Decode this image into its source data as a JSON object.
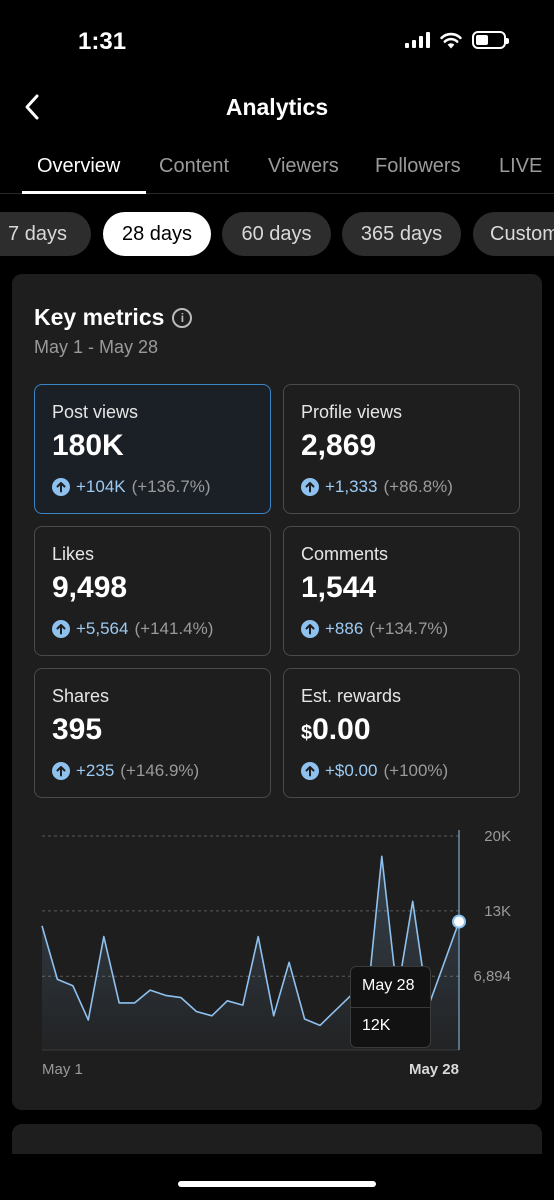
{
  "status": {
    "time": "1:31",
    "battery_level": 0.35
  },
  "header": {
    "title": "Analytics",
    "back_icon": "chevron-left-icon"
  },
  "tabs": [
    {
      "label": "Overview",
      "active": true
    },
    {
      "label": "Content"
    },
    {
      "label": "Viewers"
    },
    {
      "label": "Followers"
    },
    {
      "label": "LIVE"
    }
  ],
  "ranges": [
    {
      "label": "7 days"
    },
    {
      "label": "28 days",
      "active": true
    },
    {
      "label": "60 days"
    },
    {
      "label": "365 days"
    },
    {
      "label": "Custom"
    }
  ],
  "key_metrics": {
    "title": "Key metrics",
    "date_range": "May 1 - May 28",
    "metrics": [
      {
        "label": "Post views",
        "value": "180K",
        "change": "+104K",
        "pct": "(+136.7%)",
        "selected": true
      },
      {
        "label": "Profile views",
        "value": "2,869",
        "change": "+1,333",
        "pct": "(+86.8%)"
      },
      {
        "label": "Likes",
        "value": "9,498",
        "change": "+5,564",
        "pct": "(+141.4%)"
      },
      {
        "label": "Comments",
        "value": "1,544",
        "change": "+886",
        "pct": "(+134.7%)"
      },
      {
        "label": "Shares",
        "value": "395",
        "change": "+235",
        "pct": "(+146.9%)"
      },
      {
        "label": "Est. rewards",
        "currency": "$",
        "value": "0.00",
        "change": "+$0.00",
        "pct": "(+100%)"
      }
    ]
  },
  "chart_data": {
    "type": "area",
    "x_start_label": "May 1",
    "x_end_label": "May 28",
    "y_ticks": [
      {
        "value": 20000,
        "label": "20K"
      },
      {
        "value": 13000,
        "label": "13K"
      },
      {
        "value": 6894,
        "label": "6,894"
      }
    ],
    "ylim": [
      0,
      20000
    ],
    "values": [
      11600,
      6600,
      6000,
      2800,
      10600,
      4400,
      4400,
      5600,
      5100,
      4900,
      3600,
      3200,
      4600,
      4200,
      10600,
      3200,
      8200,
      2900,
      2300,
      3700,
      5100,
      3700,
      18100,
      5200,
      13900,
      4000,
      8000,
      12000
    ],
    "tooltip": {
      "date": "May 28",
      "value": "12K"
    },
    "line_color": "#8fc1ef"
  }
}
